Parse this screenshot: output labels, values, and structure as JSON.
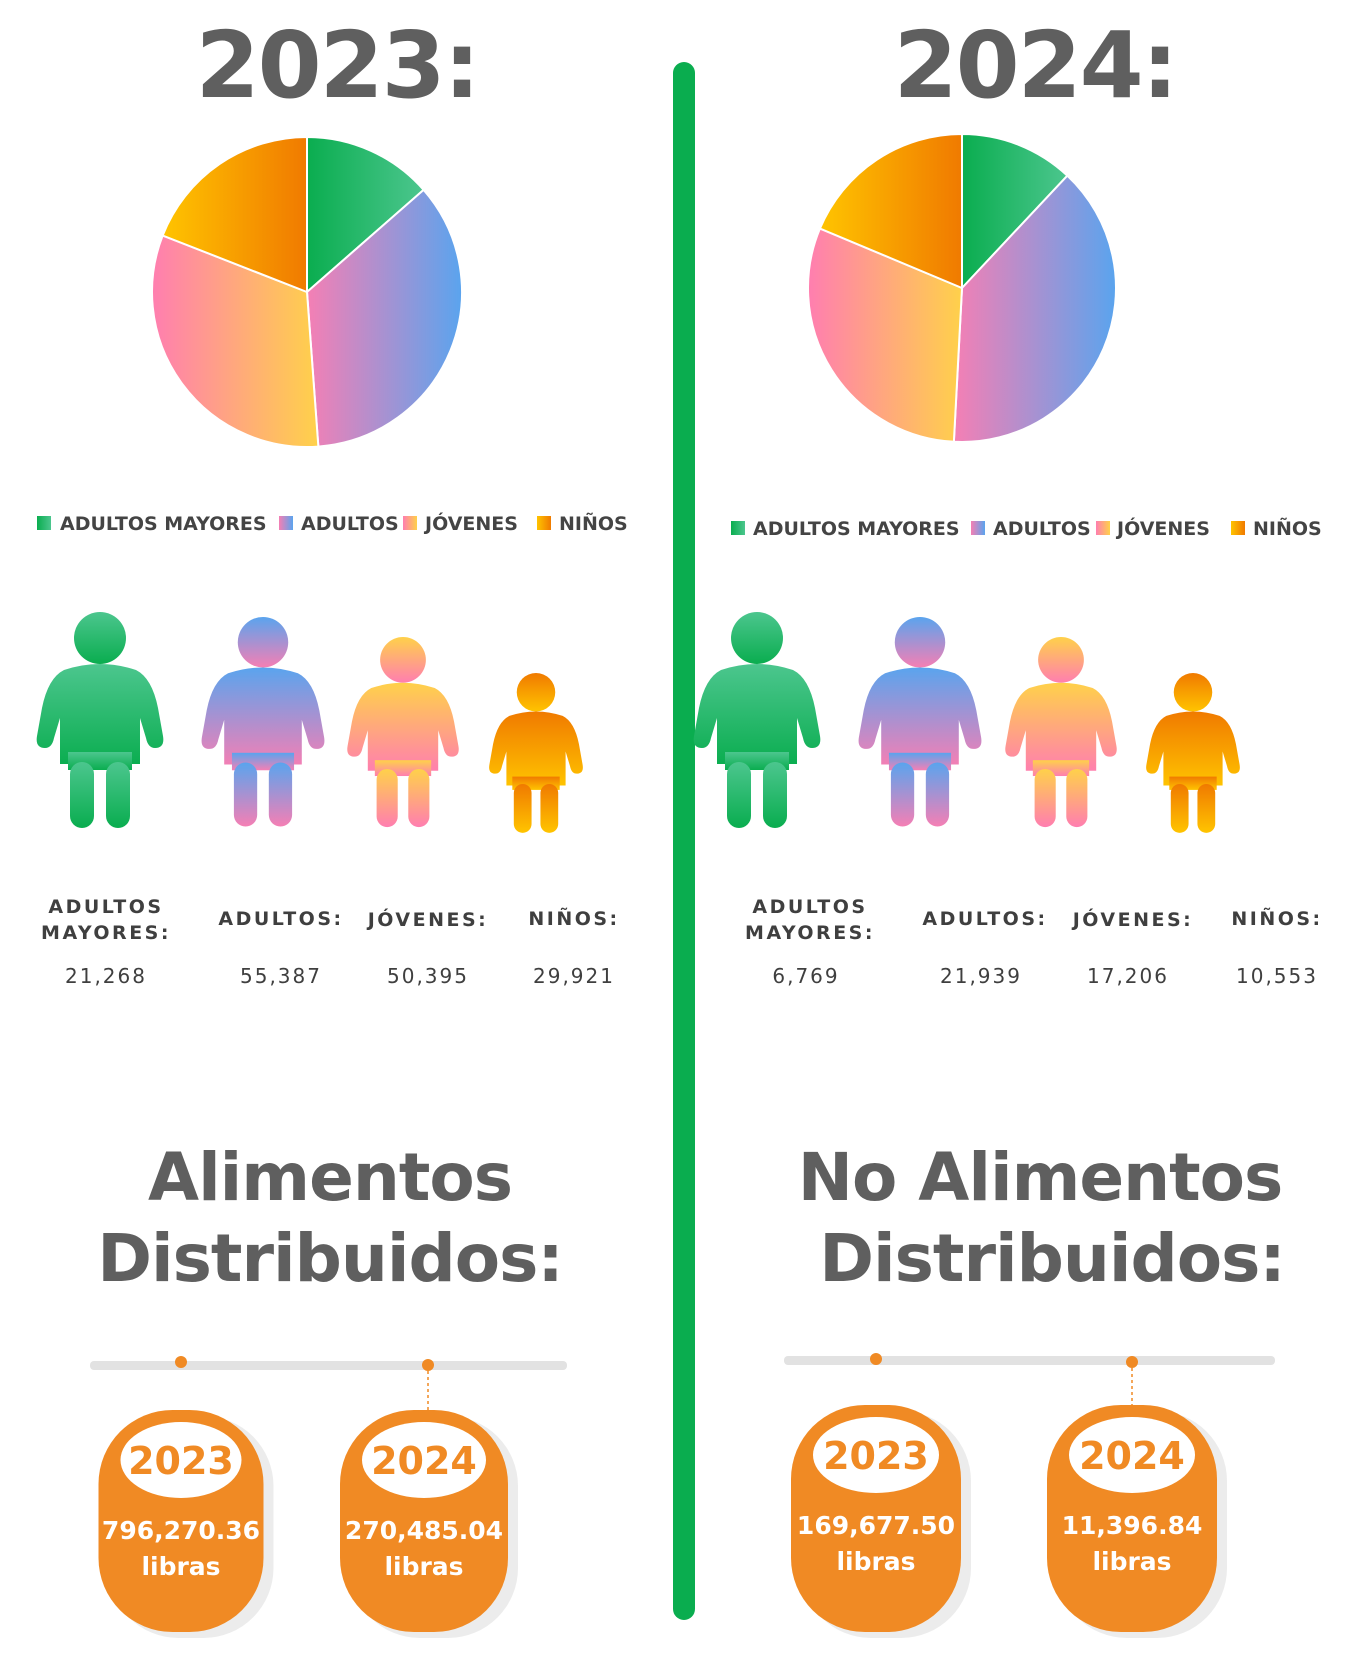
{
  "colors": {
    "title_gray": "#5f5f5f",
    "divider_green": "#0aad4f",
    "orange": "#f08a24",
    "track_gray": "#e2e2e2"
  },
  "categories": [
    {
      "key": "adultos_mayores",
      "legend": "ADULTOS MAYORES",
      "label_lines": [
        "ADULTOS",
        "MAYORES:"
      ],
      "icon": "person-icon",
      "gradient": [
        "#0aad4f",
        "#4cc68e"
      ]
    },
    {
      "key": "adultos",
      "legend": "ADULTOS",
      "label_lines": [
        "ADULTOS:"
      ],
      "icon": "person-icon",
      "gradient": [
        "#f57fb4",
        "#5aa4ee"
      ]
    },
    {
      "key": "jovenes",
      "legend": "JÓVENES",
      "label_lines": [
        "JÓVENES:"
      ],
      "icon": "person-icon",
      "gradient": [
        "#ff7eb0",
        "#ffd14a"
      ]
    },
    {
      "key": "ninos",
      "legend": "NIÑOS",
      "label_lines": [
        "NIÑOS:"
      ],
      "icon": "person-icon",
      "gradient": [
        "#ffc400",
        "#f07a00"
      ]
    }
  ],
  "panels": [
    {
      "title": "2023:",
      "values_text": [
        "21,268",
        "55,387",
        "50,395",
        "29,921"
      ]
    },
    {
      "title": "2024:",
      "values_text": [
        "6,769",
        "21,939",
        "17,206",
        "10,553"
      ]
    }
  ],
  "chart_data": [
    {
      "type": "pie",
      "title": "2023:",
      "categories": [
        "ADULTOS MAYORES",
        "ADULTOS",
        "JÓVENES",
        "NIÑOS"
      ],
      "values": [
        21268,
        55387,
        50395,
        29921
      ],
      "legend_position": "bottom"
    },
    {
      "type": "pie",
      "title": "2024:",
      "categories": [
        "ADULTOS MAYORES",
        "ADULTOS",
        "JÓVENES",
        "NIÑOS"
      ],
      "values": [
        6769,
        21939,
        17206,
        10553
      ],
      "legend_position": "bottom"
    }
  ],
  "distribution": [
    {
      "title_lines": [
        "Alimentos",
        "Distribuidos:"
      ],
      "items": [
        {
          "year": "2023",
          "amount": "796,270.36",
          "unit": "libras"
        },
        {
          "year": "2024",
          "amount": "270,485.04",
          "unit": "libras"
        }
      ]
    },
    {
      "title_lines": [
        "No Alimentos",
        "Distribuidos:"
      ],
      "items": [
        {
          "year": "2023",
          "amount": "169,677.50",
          "unit": "libras"
        },
        {
          "year": "2024",
          "amount": "11,396.84",
          "unit": "libras"
        }
      ]
    }
  ]
}
